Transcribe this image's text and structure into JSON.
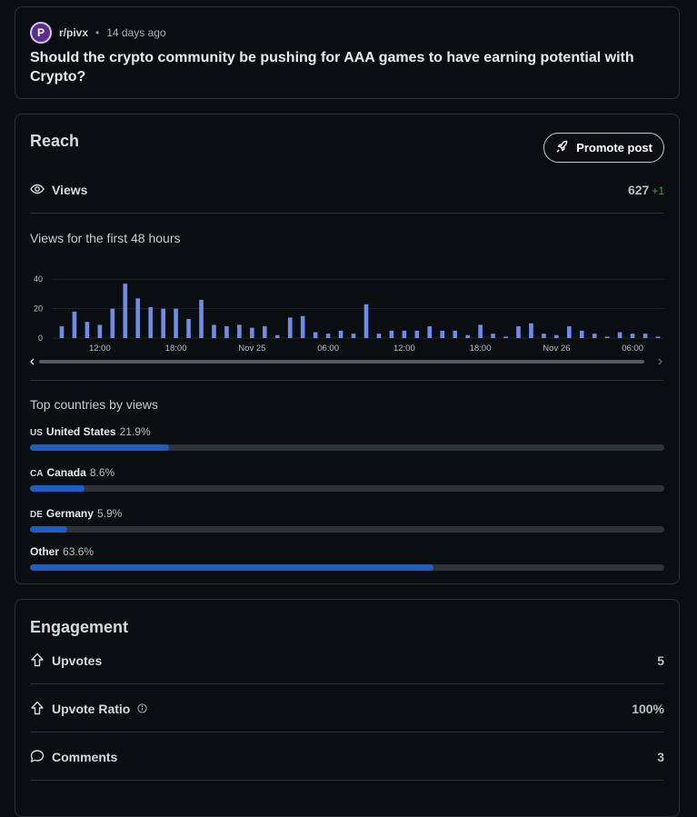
{
  "post": {
    "avatar_letter": "P",
    "subreddit": "r/pivx",
    "separator": "•",
    "time": "14 days ago",
    "title": "Should the crypto community be pushing for AAA games to have earning potential with Crypto?"
  },
  "reach": {
    "title": "Reach",
    "promote_label": "Promote post",
    "views_label": "Views",
    "views_value": "627",
    "views_delta": "+1",
    "chart_label": "Views for the first 48 hours",
    "countries_label": "Top countries by views",
    "countries": [
      {
        "code": "US",
        "name": "United States",
        "pct_text": "21.9%",
        "pct": 21.9
      },
      {
        "code": "CA",
        "name": "Canada",
        "pct_text": "8.6%",
        "pct": 8.6
      },
      {
        "code": "DE",
        "name": "Germany",
        "pct_text": "5.9%",
        "pct": 5.9
      },
      {
        "code": "",
        "name": "Other",
        "pct_text": "63.6%",
        "pct": 63.6
      }
    ]
  },
  "engagement": {
    "title": "Engagement",
    "rows": [
      {
        "label": "Upvotes",
        "value": "5"
      },
      {
        "label": "Upvote Ratio",
        "value": "100%"
      },
      {
        "label": "Comments",
        "value": "3"
      }
    ]
  },
  "chart_data": {
    "type": "bar",
    "title": "Views for the first 48 hours",
    "values": [
      8,
      18,
      11,
      9,
      20,
      37,
      27,
      21,
      20,
      20,
      13,
      26,
      9,
      8,
      9,
      7,
      8,
      2,
      14,
      15,
      4,
      3,
      5,
      3,
      23,
      3,
      5,
      5,
      5,
      8,
      5,
      5,
      2,
      9,
      3,
      1,
      8,
      10,
      3,
      2,
      8,
      5,
      3,
      1,
      4,
      3,
      3,
      1
    ],
    "ylim": [
      0,
      42
    ],
    "yticks": [
      0,
      20,
      40
    ],
    "xticks": [
      {
        "index": 3,
        "label": "12:00"
      },
      {
        "index": 9,
        "label": "18:00"
      },
      {
        "index": 15,
        "label": "Nov 25"
      },
      {
        "index": 21,
        "label": "06:00"
      },
      {
        "index": 27,
        "label": "12:00"
      },
      {
        "index": 33,
        "label": "18:00"
      },
      {
        "index": 39,
        "label": "Nov 26"
      },
      {
        "index": 45,
        "label": "06:00"
      }
    ],
    "bar_color": "#6c8cf0",
    "grid": true
  }
}
